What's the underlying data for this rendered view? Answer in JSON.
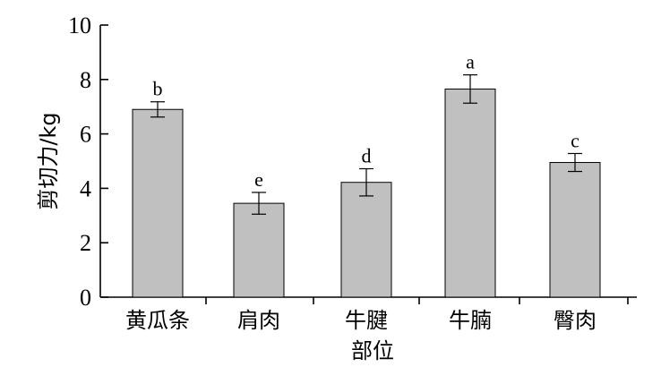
{
  "chart_data": {
    "type": "bar",
    "title": "",
    "xlabel": "部位",
    "ylabel": "剪切力/kg",
    "categories": [
      "黄瓜条",
      "肩肉",
      "牛腱",
      "牛腩",
      "臀肉"
    ],
    "values": [
      6.9,
      3.45,
      4.22,
      7.65,
      4.95
    ],
    "errors": [
      0.28,
      0.4,
      0.5,
      0.52,
      0.33
    ],
    "significance": [
      "b",
      "e",
      "d",
      "a",
      "c"
    ],
    "ylim": [
      0,
      10
    ],
    "yticks": [
      0,
      2,
      4,
      6,
      8,
      10
    ],
    "bar_color": "#c0c0c0",
    "grid": false,
    "legend": "none"
  }
}
